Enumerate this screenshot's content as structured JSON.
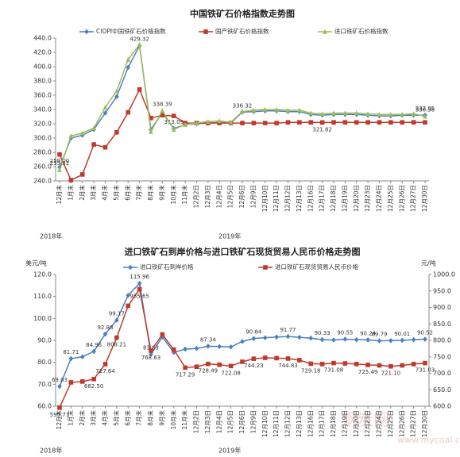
{
  "chart_data": [
    {
      "type": "line",
      "title": "中国铁矿石价格指数走势图",
      "categories": [
        "12月末",
        "1月末",
        "2月末",
        "3月末",
        "4月末",
        "5月末",
        "6月末",
        "7月末",
        "8月末",
        "9月末",
        "10月末",
        "11月末",
        "12月2日",
        "12月3日",
        "12月4日",
        "12月5日",
        "12月6日",
        "12月9日",
        "12月10日",
        "12月11日",
        "12月12日",
        "12月13日",
        "12月16日",
        "12月17日",
        "12月18日",
        "12月19日",
        "12月20日",
        "12月23日",
        "12月24日",
        "12月25日",
        "12月26日",
        "12月27日",
        "12月30日"
      ],
      "year_labels": [
        "2018年",
        "2019年"
      ],
      "ylim": [
        240,
        440
      ],
      "yticks": [
        {
          "value": 240,
          "label": "240.0"
        },
        {
          "value": 260,
          "label": "260.0"
        },
        {
          "value": 280,
          "label": "280.0"
        },
        {
          "value": 300,
          "label": "300.0"
        },
        {
          "value": 320,
          "label": "320.0"
        },
        {
          "value": 340,
          "label": "340.0"
        },
        {
          "value": 360,
          "label": "360.0"
        },
        {
          "value": 380,
          "label": "380.0"
        },
        {
          "value": 400,
          "label": "400.0"
        },
        {
          "value": 420,
          "label": "420.0"
        },
        {
          "value": 440,
          "label": "440.0"
        }
      ],
      "grid": false,
      "series": [
        {
          "name": "CIOPI中国铁矿石价格指数",
          "color": "#4a7fc1",
          "marker": "diamond",
          "axis": "y",
          "values": [
            259.0,
            300,
            304,
            312,
            335,
            358,
            399,
            429.32,
            312,
            336,
            313.09,
            319,
            320,
            321,
            322,
            321,
            336.32,
            337,
            338,
            338,
            337,
            337,
            333,
            332,
            333,
            333,
            333,
            332,
            331,
            331,
            332,
            332,
            332.05
          ],
          "value_labels": [
            "259.00",
            null,
            null,
            null,
            null,
            null,
            null,
            "429.32",
            null,
            null,
            "313.09",
            null,
            null,
            null,
            null,
            null,
            "336.32",
            null,
            null,
            null,
            null,
            null,
            null,
            null,
            null,
            null,
            null,
            null,
            null,
            null,
            null,
            null,
            "332.05"
          ]
        },
        {
          "name": "国产铁矿石价格指数",
          "color": "#c0392b",
          "marker": "square",
          "axis": "y",
          "values": [
            277,
            241,
            249,
            291,
            287,
            308,
            336,
            368,
            328,
            332,
            331,
            321,
            321,
            321,
            321,
            321,
            321,
            321,
            321,
            321,
            322,
            322,
            322,
            321.82,
            322,
            322,
            322,
            322,
            322,
            322,
            322,
            322,
            322
          ],
          "value_labels": [
            null,
            null,
            null,
            null,
            null,
            null,
            null,
            null,
            null,
            null,
            null,
            null,
            null,
            null,
            null,
            null,
            null,
            null,
            null,
            null,
            null,
            null,
            null,
            "321.82",
            null,
            null,
            null,
            null,
            null,
            null,
            null,
            null,
            null
          ]
        },
        {
          "name": "进口铁矿石价格指数",
          "color": "#9bbb59",
          "marker": "triangle",
          "axis": "y",
          "values": [
            255.52,
            303,
            307,
            314,
            343,
            366,
            410,
            431,
            309,
            338.39,
            312,
            319,
            321,
            323,
            324,
            322,
            337,
            339,
            340,
            340,
            339,
            339,
            335,
            334,
            335,
            335,
            335,
            334,
            333,
            333,
            333,
            334,
            330.38
          ],
          "value_labels": [
            "255.52",
            null,
            null,
            null,
            null,
            null,
            null,
            null,
            null,
            "338.39",
            null,
            null,
            null,
            null,
            null,
            null,
            null,
            null,
            null,
            null,
            null,
            null,
            null,
            null,
            null,
            null,
            null,
            null,
            null,
            null,
            null,
            null,
            "330.38"
          ]
        }
      ]
    },
    {
      "type": "line",
      "title": "进口铁矿石到岸价格与进口铁矿石现货贸易人民币价格走势图",
      "y_label": "美元/吨",
      "y2_label": "元/吨",
      "categories": [
        "12月末",
        "1月末",
        "2月末",
        "3月末",
        "4月末",
        "5月末",
        "6月末",
        "7月末",
        "8月末",
        "9月末",
        "10月末",
        "11月末",
        "12月2日",
        "12月3日",
        "12月4日",
        "12月5日",
        "12月6日",
        "12月9日",
        "12月10日",
        "12月11日",
        "12月12日",
        "12月13日",
        "12月16日",
        "12月17日",
        "12月18日",
        "12月19日",
        "12月20日",
        "12月23日",
        "12月24日",
        "12月25日",
        "12月26日",
        "12月27日",
        "12月30日"
      ],
      "year_labels": [
        "2018年",
        "2019年"
      ],
      "ylim": [
        60,
        120
      ],
      "yticks": [
        {
          "value": 60,
          "label": "60.0"
        },
        {
          "value": 70,
          "label": "70.0"
        },
        {
          "value": 80,
          "label": "80.0"
        },
        {
          "value": 90,
          "label": "90.0"
        },
        {
          "value": 100,
          "label": "100.0"
        },
        {
          "value": 110,
          "label": "110.0"
        },
        {
          "value": 120,
          "label": "120.0"
        }
      ],
      "y2lim": [
        600,
        1000
      ],
      "y2ticks": [
        {
          "value": 600,
          "label": "600.0"
        },
        {
          "value": 650,
          "label": "650.0"
        },
        {
          "value": 700,
          "label": "700.0"
        },
        {
          "value": 750,
          "label": "750.0"
        },
        {
          "value": 800,
          "label": "800.0"
        },
        {
          "value": 850,
          "label": "850.0"
        },
        {
          "value": 900,
          "label": "900.0"
        },
        {
          "value": 950,
          "label": "950.0"
        },
        {
          "value": 1000,
          "label": "1000.0"
        }
      ],
      "grid": false,
      "series": [
        {
          "name": "进口铁矿石到岸价格",
          "color": "#4a7fc1",
          "marker": "diamond",
          "axis": "y",
          "values": [
            69.03,
            81.71,
            82.5,
            84.96,
            92.88,
            99.17,
            110.5,
            115.96,
            83.63,
            91.6,
            84.5,
            86.0,
            86.3,
            87.34,
            87.2,
            87.0,
            89.5,
            90.84,
            91.2,
            91.5,
            91.77,
            91.4,
            91.0,
            90.33,
            90.2,
            90.55,
            90.3,
            90.24,
            89.79,
            89.9,
            90.01,
            90.3,
            90.52
          ],
          "value_labels": [
            "69.03",
            "81.71",
            null,
            "84.96",
            "92.88",
            "99.17",
            null,
            "115.96",
            "83.63",
            null,
            null,
            null,
            null,
            "87.34",
            null,
            null,
            null,
            "90.84",
            null,
            null,
            "91.77",
            null,
            null,
            "90.33",
            null,
            "90.55",
            null,
            "90.24",
            "89.79",
            null,
            "90.01",
            null,
            "90.52"
          ]
        },
        {
          "name": "进口铁矿石现货贸易人民币价格",
          "color": "#c0392b",
          "marker": "square",
          "axis": "y2",
          "values": [
            595.71,
            672.5,
            675.0,
            682.5,
            727.64,
            808.21,
            905,
            955.65,
            768.63,
            818,
            772,
            717.29,
            720,
            728.49,
            726,
            722.08,
            735,
            744.23,
            747,
            746,
            744.83,
            740,
            729.18,
            728,
            731.08,
            730,
            728,
            725.49,
            724,
            721.1,
            724,
            728,
            731.03
          ],
          "value_labels": [
            "595.71",
            null,
            null,
            "682.50",
            "727.64",
            "808.21",
            null,
            "955.65",
            "768.63",
            null,
            null,
            "717.29",
            null,
            "728.49",
            null,
            "722.08",
            null,
            "744.23",
            null,
            null,
            "744.83",
            null,
            "729.18",
            null,
            "731.08",
            null,
            null,
            "725.49",
            null,
            "721.10",
            null,
            null,
            "731.03"
          ]
        }
      ]
    }
  ],
  "watermark": {
    "name": "钢炭网",
    "url": "www.mycoal.cn"
  }
}
